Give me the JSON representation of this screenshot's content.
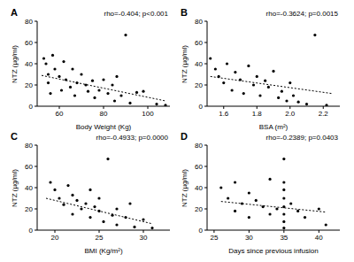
{
  "chart_data": [
    {
      "type": "scatter",
      "title": "A",
      "subtitle": "rho=-0.404; p<0.001",
      "x_label": "Body Weight (Kg)",
      "y_label": "NTZ (µg/ml)",
      "xlim": [
        50,
        110
      ],
      "xticks": [
        60,
        80,
        100
      ],
      "ylim": [
        0,
        80
      ],
      "yticks": [
        0,
        20,
        40,
        60,
        80
      ],
      "series": [
        {
          "type": "scatter",
          "color": "#000000",
          "marker": "circle",
          "x": [
            53,
            54,
            55,
            55,
            56,
            57,
            58,
            60,
            61,
            62,
            63,
            65,
            66,
            67,
            68,
            70,
            72,
            73,
            75,
            76,
            78,
            80,
            82,
            84,
            85,
            86,
            88,
            90,
            92,
            95,
            98,
            104,
            108
          ],
          "values": [
            45,
            40,
            30,
            22,
            12,
            48,
            35,
            28,
            15,
            42,
            25,
            18,
            35,
            10,
            22,
            30,
            20,
            14,
            24,
            8,
            15,
            25,
            12,
            20,
            5,
            28,
            10,
            67,
            3,
            13,
            14,
            2,
            1
          ]
        },
        {
          "type": "line",
          "color": "#000000",
          "line_style": "dotted",
          "x": [
            52,
            108
          ],
          "values": [
            29,
            5
          ]
        }
      ]
    },
    {
      "type": "scatter",
      "title": "B",
      "subtitle": "rho=-0.3624; p=0.0015",
      "x_label": "BSA (m²)",
      "y_label": "NTZ (µg/ml)",
      "xlim": [
        1.5,
        2.3
      ],
      "xticks": [
        1.6,
        1.8,
        {
          "value": 2,
          "label": "2.0"
        },
        2.2
      ],
      "ylim": [
        0,
        80
      ],
      "yticks": [
        0,
        20,
        40,
        60,
        80
      ],
      "series": [
        {
          "type": "scatter",
          "color": "#000000",
          "marker": "circle",
          "x": [
            1.52,
            1.55,
            1.57,
            1.6,
            1.62,
            1.65,
            1.67,
            1.7,
            1.72,
            1.75,
            1.78,
            1.8,
            1.82,
            1.85,
            1.87,
            1.9,
            1.93,
            1.95,
            1.98,
            2.0,
            2.02,
            2.05,
            2.1,
            2.15,
            2.22
          ],
          "values": [
            45,
            35,
            28,
            22,
            40,
            15,
            32,
            25,
            12,
            38,
            20,
            28,
            10,
            24,
            18,
            33,
            8,
            14,
            5,
            22,
            10,
            4,
            2,
            67,
            1
          ]
        },
        {
          "type": "line",
          "color": "#000000",
          "line_style": "dotted",
          "x": [
            1.52,
            2.25
          ],
          "values": [
            28,
            12
          ]
        }
      ]
    },
    {
      "type": "scatter",
      "title": "C",
      "subtitle": "rho=-0.4933; p=0.0000",
      "x_label": "BMI (Kg/m²)",
      "y_label": "NTZ (µg/ml)",
      "xlim": [
        18,
        33
      ],
      "xticks": [
        20,
        25,
        30
      ],
      "ylim": [
        0,
        80
      ],
      "yticks": [
        0,
        20,
        40,
        60,
        80
      ],
      "series": [
        {
          "type": "scatter",
          "color": "#000000",
          "marker": "circle",
          "x": [
            19.5,
            20,
            20.5,
            21,
            21.5,
            22,
            22,
            22.5,
            23,
            23.5,
            24,
            24,
            24.5,
            25,
            25,
            25.5,
            26,
            26.5,
            27,
            27,
            28,
            28.5,
            29,
            30,
            31
          ],
          "values": [
            45,
            38,
            30,
            24,
            42,
            15,
            33,
            28,
            20,
            25,
            12,
            38,
            22,
            18,
            30,
            8,
            67,
            14,
            20,
            5,
            12,
            25,
            3,
            10,
            2
          ]
        },
        {
          "type": "line",
          "color": "#000000",
          "line_style": "dotted",
          "x": [
            19,
            31
          ],
          "values": [
            30,
            6
          ]
        }
      ]
    },
    {
      "type": "scatter",
      "title": "D",
      "subtitle": "rho=-0.2389; p=0.0403",
      "x_label": "Days since previous infusion",
      "y_label": "NTZ (µg/ml)",
      "xlim": [
        24,
        43
      ],
      "xticks": [
        25,
        30,
        35,
        40
      ],
      "ylim": [
        0,
        80
      ],
      "yticks": [
        0,
        20,
        40,
        60,
        80
      ],
      "series": [
        {
          "type": "scatter",
          "color": "#000000",
          "marker": "circle",
          "x": [
            26,
            27,
            28,
            28,
            29,
            30,
            30,
            31,
            32,
            33,
            33,
            34,
            35,
            35,
            35,
            35,
            35,
            35,
            35,
            35,
            36,
            37,
            38,
            40,
            41
          ],
          "values": [
            40,
            30,
            18,
            45,
            25,
            35,
            12,
            28,
            22,
            48,
            15,
            20,
            67,
            45,
            38,
            30,
            22,
            15,
            8,
            2,
            25,
            18,
            12,
            20,
            5
          ]
        },
        {
          "type": "line",
          "color": "#000000",
          "line_style": "dotted",
          "x": [
            26,
            41
          ],
          "values": [
            27,
            17
          ]
        }
      ]
    }
  ]
}
